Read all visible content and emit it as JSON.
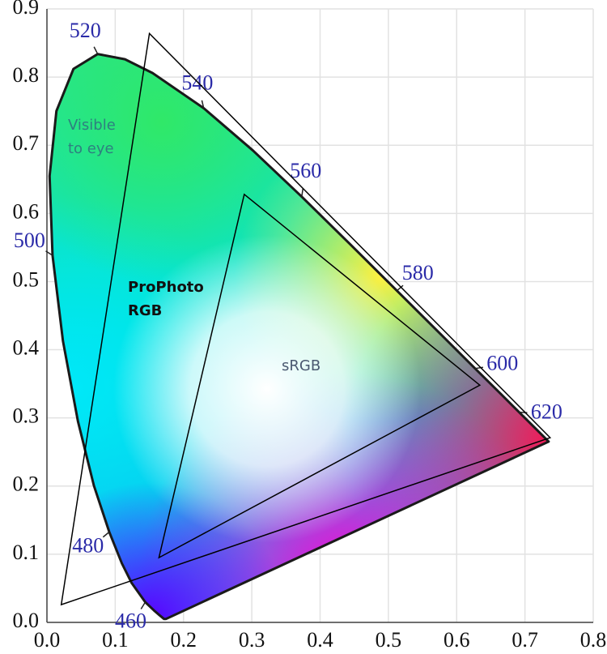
{
  "chart_data": {
    "type": "chromaticity",
    "xlim": [
      0,
      0.8
    ],
    "ylim": [
      0,
      0.9
    ],
    "xticks": [
      {
        "value": 0,
        "label": "0.0"
      },
      0.1,
      0.2,
      0.3,
      0.4,
      0.5,
      0.6,
      0.7,
      0.8
    ],
    "yticks": [
      {
        "value": 0,
        "label": "0.0"
      },
      0.1,
      0.2,
      0.3,
      0.4,
      0.5,
      0.6,
      0.7,
      0.8,
      0.9
    ],
    "grid": true,
    "locus": {
      "name": [
        "Visible",
        "to eye"
      ],
      "color": "#1a1a1a",
      "x": [
        0.1741,
        0.1714,
        0.1644,
        0.1566,
        0.144,
        0.1241,
        0.1096,
        0.0913,
        0.0687,
        0.0454,
        0.0235,
        0.0082,
        0.0039,
        0.0139,
        0.0389,
        0.0743,
        0.1142,
        0.1547,
        0.2296,
        0.3016,
        0.3731,
        0.4441,
        0.5125,
        0.5752,
        0.627,
        0.6658,
        0.6915,
        0.719,
        0.7347
      ],
      "y": [
        0.005,
        0.0051,
        0.0109,
        0.0177,
        0.0297,
        0.0578,
        0.0868,
        0.1327,
        0.2007,
        0.295,
        0.4127,
        0.5384,
        0.6548,
        0.7502,
        0.812,
        0.8338,
        0.8262,
        0.8059,
        0.7543,
        0.6923,
        0.6245,
        0.5547,
        0.4866,
        0.4242,
        0.3725,
        0.334,
        0.3083,
        0.2809,
        0.2653
      ],
      "labels": [
        null,
        null,
        null,
        null,
        "460",
        null,
        null,
        "480",
        null,
        null,
        null,
        "500",
        null,
        null,
        null,
        "520",
        null,
        null,
        "540",
        null,
        "560",
        null,
        "580",
        null,
        "600",
        null,
        "620",
        null,
        null
      ]
    },
    "gamuts": [
      {
        "name": [
          "ProPhoto",
          "RGB"
        ],
        "color": "#000000",
        "x": [
          0.737,
          0.15,
          0.021
        ],
        "y": [
          0.271,
          0.864,
          0.026
        ]
      },
      {
        "name": [
          "sRGB"
        ],
        "color": "#000000",
        "x": [
          0.634,
          0.289,
          0.164
        ],
        "y": [
          0.348,
          0.628,
          0.095
        ]
      }
    ]
  }
}
